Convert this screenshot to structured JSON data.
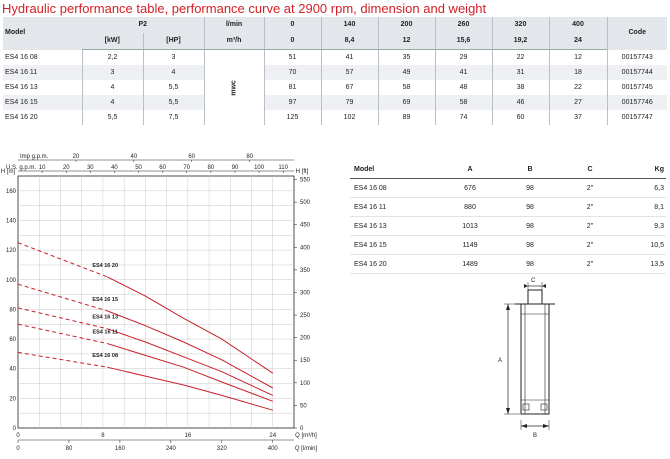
{
  "page": {
    "title": "Hydraulic performance table, performance curve at 2900 rpm, dimension and weight"
  },
  "perf_table": {
    "headers": {
      "model": "Model",
      "p2": "P2",
      "flow_unit_lmin": "l/min",
      "flow_lmin": [
        "0",
        "140",
        "200",
        "260",
        "320",
        "400"
      ],
      "code": "Code",
      "kw": "[kW]",
      "hp": "[HP]",
      "flow_unit_m3h": "m³/h",
      "flow_m3h": [
        "0",
        "8,4",
        "12",
        "15,6",
        "19,2",
        "24"
      ]
    },
    "head_unit": "mwc",
    "rows": [
      {
        "model": "ES4 16 08",
        "kw": "2,2",
        "hp": "3",
        "heads": [
          "51",
          "41",
          "35",
          "29",
          "22",
          "12"
        ],
        "code": "00157743"
      },
      {
        "model": "ES4 16 11",
        "kw": "3",
        "hp": "4",
        "heads": [
          "70",
          "57",
          "49",
          "41",
          "31",
          "18"
        ],
        "code": "00157744"
      },
      {
        "model": "ES4 16 13",
        "kw": "4",
        "hp": "5,5",
        "heads": [
          "81",
          "67",
          "58",
          "48",
          "38",
          "22"
        ],
        "code": "00157745"
      },
      {
        "model": "ES4 16 15",
        "kw": "4",
        "hp": "5,5",
        "heads": [
          "97",
          "79",
          "69",
          "58",
          "46",
          "27"
        ],
        "code": "00157746"
      },
      {
        "model": "ES4 16 20",
        "kw": "5,5",
        "hp": "7,5",
        "heads": [
          "125",
          "102",
          "89",
          "74",
          "60",
          "37"
        ],
        "code": "00157747"
      }
    ]
  },
  "dims_table": {
    "headers": [
      "Model",
      "A",
      "B",
      "C",
      "Kg"
    ],
    "rows": [
      [
        "ES4 16 08",
        "676",
        "98",
        "2\"",
        "6,3"
      ],
      [
        "ES4 16 11",
        "880",
        "98",
        "2\"",
        "8,1"
      ],
      [
        "ES4 16 13",
        "1013",
        "98",
        "2\"",
        "9,3"
      ],
      [
        "ES4 16 15",
        "1149",
        "98",
        "2\"",
        "10,5"
      ],
      [
        "ES4 16 20",
        "1489",
        "98",
        "2\"",
        "13,5"
      ]
    ]
  },
  "drawing": {
    "label_a": "A",
    "label_b": "B",
    "label_c": "C"
  },
  "chart_data": {
    "type": "line",
    "title": "",
    "x_axes": {
      "bottom_m3h": {
        "label": "Q [m³/h]",
        "ticks": [
          "0",
          "8",
          "16",
          "24"
        ],
        "range": [
          0,
          26
        ]
      },
      "bottom_lmin": {
        "label": "Q [l/min]",
        "ticks": [
          "0",
          "80",
          "160",
          "240",
          "320",
          "400"
        ]
      },
      "top_imp": {
        "label": "Imp g.p.m.",
        "ticks": [
          "20",
          "40",
          "60",
          "80"
        ]
      },
      "top_us": {
        "label": "U.S. g.p.m.",
        "ticks": [
          "10",
          "20",
          "30",
          "40",
          "50",
          "60",
          "70",
          "80",
          "90",
          "100",
          "110"
        ]
      }
    },
    "y_axes": {
      "left_m": {
        "label": "H [m]",
        "ticks": [
          "0",
          "20",
          "40",
          "60",
          "80",
          "100",
          "120",
          "140",
          "160"
        ],
        "range": [
          0,
          170
        ]
      },
      "right_ft": {
        "label": "H [ft]",
        "ticks": [
          "0",
          "50",
          "100",
          "150",
          "200",
          "250",
          "300",
          "350",
          "400",
          "450",
          "500",
          "550"
        ]
      }
    },
    "grid": true,
    "x": [
      0,
      8.4,
      12,
      15.6,
      19.2,
      24
    ],
    "series": [
      {
        "name": "ES4 16 20",
        "values": [
          125,
          102,
          89,
          74,
          60,
          37
        ]
      },
      {
        "name": "ES4 16 15",
        "values": [
          97,
          79,
          69,
          58,
          46,
          27
        ]
      },
      {
        "name": "ES4 16 13",
        "values": [
          81,
          67,
          58,
          48,
          38,
          22
        ]
      },
      {
        "name": "ES4 16 11",
        "values": [
          70,
          57,
          49,
          41,
          31,
          18
        ]
      },
      {
        "name": "ES4 16 08",
        "values": [
          51,
          41,
          35,
          29,
          22,
          12
        ]
      }
    ],
    "dashed_until_x": 8.4,
    "color": "#c8202b"
  }
}
